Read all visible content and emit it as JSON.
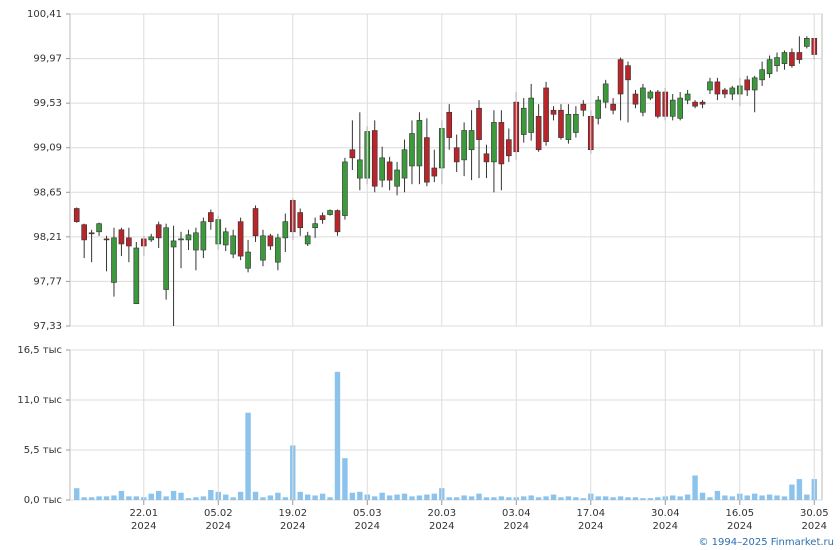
{
  "chart_data": [
    {
      "type": "candlestick",
      "up_color": "#3c9a3c",
      "down_color": "#b8262b",
      "grid": true,
      "ylim": [
        97.33,
        100.41
      ],
      "yticks": [
        {
          "value": 97.33,
          "label": "97,33"
        },
        {
          "value": 97.77,
          "label": "97,77"
        },
        {
          "value": 98.21,
          "label": "98,21"
        },
        {
          "value": 98.65,
          "label": "98,65"
        },
        {
          "value": 99.09,
          "label": "99,09"
        },
        {
          "value": 99.53,
          "label": "99,53"
        },
        {
          "value": 99.97,
          "label": "99,97"
        },
        {
          "value": 100.41,
          "label": "100,41"
        }
      ],
      "open": [
        98.49,
        98.33,
        98.25,
        98.26,
        98.19,
        97.76,
        98.28,
        98.2,
        97.55,
        98.19,
        98.18,
        98.33,
        97.69,
        98.11,
        98.18,
        98.18,
        98.08,
        98.08,
        98.45,
        98.14,
        98.13,
        98.04,
        98.36,
        97.9,
        98.49,
        97.98,
        98.22,
        97.96,
        98.2,
        98.57,
        98.45,
        98.14,
        98.3,
        98.42,
        98.43,
        98.47,
        98.42,
        99.07,
        98.79,
        98.79,
        99.26,
        98.77,
        98.95,
        98.71,
        98.79,
        98.91,
        98.91,
        99.19,
        98.89,
        98.89,
        99.44,
        99.09,
        98.97,
        99.07,
        99.48,
        99.03,
        98.95,
        99.34,
        99.17,
        99.54,
        99.22,
        99.24,
        99.4,
        99.68,
        99.46,
        99.46,
        99.17,
        99.24,
        99.52,
        99.4,
        99.38,
        99.54,
        99.52,
        99.96,
        99.9,
        99.62,
        99.44,
        99.58,
        99.64,
        99.64,
        99.4,
        99.38,
        99.56,
        99.54,
        99.54,
        99.66,
        99.74,
        99.66,
        99.62,
        99.62,
        99.76,
        99.66,
        99.76,
        99.82,
        99.9,
        99.92,
        100.03,
        100.03,
        100.09,
        100.17
      ],
      "high": [
        98.5,
        98.34,
        98.28,
        98.35,
        98.22,
        98.3,
        98.3,
        98.3,
        98.16,
        98.22,
        98.24,
        98.36,
        98.34,
        98.32,
        98.26,
        98.28,
        98.3,
        98.4,
        98.48,
        98.42,
        98.3,
        98.28,
        98.4,
        98.18,
        98.52,
        98.28,
        98.24,
        98.24,
        98.44,
        98.59,
        98.49,
        98.26,
        98.4,
        98.45,
        98.48,
        98.48,
        98.99,
        99.36,
        99.44,
        99.3,
        99.36,
        99.1,
        99.0,
        98.95,
        99.17,
        99.36,
        99.44,
        99.38,
        99.07,
        99.36,
        99.52,
        99.22,
        99.34,
        99.46,
        99.56,
        99.12,
        99.46,
        99.46,
        99.28,
        99.64,
        99.58,
        99.72,
        99.52,
        99.74,
        99.5,
        99.52,
        99.52,
        99.5,
        99.56,
        99.46,
        99.6,
        99.76,
        99.58,
        99.98,
        99.94,
        99.66,
        99.72,
        99.66,
        99.66,
        99.68,
        99.62,
        99.64,
        99.66,
        99.56,
        99.56,
        99.78,
        99.78,
        99.68,
        99.7,
        99.78,
        99.8,
        99.8,
        99.94,
        100.0,
        100.03,
        100.05,
        100.07,
        100.19,
        100.19,
        100.17
      ],
      "low": [
        98.35,
        98.0,
        97.96,
        98.22,
        97.87,
        97.62,
        98.02,
        97.96,
        97.55,
        98.02,
        98.16,
        98.1,
        97.59,
        97.33,
        97.9,
        98.08,
        97.88,
        98.0,
        98.28,
        98.08,
        98.07,
        98.0,
        97.98,
        97.86,
        98.16,
        97.92,
        98.08,
        97.88,
        98.06,
        98.18,
        98.22,
        98.12,
        98.2,
        98.34,
        98.42,
        98.22,
        98.38,
        98.87,
        98.67,
        98.73,
        98.65,
        98.7,
        98.67,
        98.62,
        98.65,
        98.73,
        98.73,
        98.71,
        98.75,
        98.73,
        99.07,
        98.85,
        98.81,
        98.77,
        98.79,
        98.79,
        98.65,
        98.67,
        98.95,
        98.97,
        99.14,
        99.16,
        99.05,
        99.11,
        99.36,
        99.17,
        99.13,
        99.19,
        99.4,
        99.03,
        99.32,
        99.48,
        99.42,
        99.36,
        99.34,
        99.48,
        99.4,
        99.56,
        99.38,
        99.36,
        99.36,
        99.36,
        99.52,
        99.48,
        99.48,
        99.62,
        99.56,
        99.58,
        99.56,
        99.5,
        99.6,
        99.44,
        99.7,
        99.78,
        99.84,
        99.86,
        99.88,
        99.92,
        100.07,
        99.96
      ],
      "close": [
        98.36,
        98.18,
        98.24,
        98.34,
        98.18,
        98.2,
        98.14,
        98.12,
        98.1,
        98.12,
        98.21,
        98.2,
        98.3,
        98.17,
        98.19,
        98.23,
        98.25,
        98.36,
        98.36,
        98.38,
        98.26,
        98.22,
        98.02,
        98.06,
        98.22,
        98.22,
        98.12,
        98.2,
        98.36,
        98.26,
        98.3,
        98.22,
        98.34,
        98.38,
        98.47,
        98.26,
        98.95,
        98.99,
        98.97,
        99.25,
        98.71,
        98.99,
        98.77,
        98.87,
        99.07,
        99.23,
        99.36,
        98.75,
        98.81,
        99.28,
        99.19,
        98.95,
        99.26,
        99.26,
        99.17,
        98.95,
        99.34,
        98.93,
        99.01,
        99.05,
        99.48,
        99.58,
        99.07,
        99.15,
        99.42,
        99.19,
        99.42,
        99.42,
        99.46,
        99.07,
        99.56,
        99.72,
        99.46,
        99.62,
        99.76,
        99.52,
        99.68,
        99.64,
        99.4,
        99.4,
        99.56,
        99.58,
        99.62,
        99.5,
        99.52,
        99.74,
        99.62,
        99.62,
        99.68,
        99.7,
        99.66,
        99.78,
        99.86,
        99.96,
        99.98,
        100.03,
        99.9,
        99.96,
        100.17,
        100.01
      ]
    },
    {
      "type": "bar",
      "color": "#8cc3ec",
      "grid": true,
      "ylim": [
        0,
        16.5
      ],
      "yticks": [
        {
          "value": 0,
          "label": "0,0 тыс"
        },
        {
          "value": 5.5,
          "label": "5,5 тыс"
        },
        {
          "value": 11,
          "label": "11,0 тыс"
        },
        {
          "value": 16.5,
          "label": "16,5 тыс"
        }
      ],
      "categories": [
        null,
        null,
        null,
        null,
        null,
        null,
        null,
        null,
        null,
        [
          "22.01",
          "2024"
        ],
        null,
        null,
        null,
        null,
        null,
        null,
        null,
        null,
        null,
        [
          "05.02",
          "2024"
        ],
        null,
        null,
        null,
        null,
        null,
        null,
        null,
        null,
        null,
        [
          "19.02",
          "2024"
        ],
        null,
        null,
        null,
        null,
        null,
        null,
        null,
        null,
        null,
        [
          "05.03",
          "2024"
        ],
        null,
        null,
        null,
        null,
        null,
        null,
        null,
        null,
        null,
        [
          "20.03",
          "2024"
        ],
        null,
        null,
        null,
        null,
        null,
        null,
        null,
        null,
        null,
        [
          "03.04",
          "2024"
        ],
        null,
        null,
        null,
        null,
        null,
        null,
        null,
        null,
        null,
        [
          "17.04",
          "2024"
        ],
        null,
        null,
        null,
        null,
        null,
        null,
        null,
        null,
        null,
        [
          "30.04",
          "2024"
        ],
        null,
        null,
        null,
        null,
        null,
        null,
        null,
        null,
        null,
        [
          "16.05",
          "2024"
        ],
        null,
        null,
        null,
        null,
        null,
        null,
        null,
        null,
        null,
        [
          "30.05",
          "2024"
        ]
      ],
      "values": [
        1.3,
        0.3,
        0.3,
        0.4,
        0.4,
        0.5,
        1.0,
        0.4,
        0.4,
        0.3,
        0.7,
        1.0,
        0.4,
        1.0,
        0.8,
        0.2,
        0.3,
        0.4,
        1.1,
        0.9,
        0.6,
        0.3,
        0.9,
        9.6,
        0.9,
        0.3,
        0.5,
        0.8,
        0.3,
        6.0,
        0.9,
        0.6,
        0.5,
        0.7,
        0.3,
        14.1,
        4.6,
        0.8,
        0.9,
        0.6,
        0.4,
        0.8,
        0.5,
        0.6,
        0.7,
        0.4,
        0.5,
        0.6,
        0.7,
        1.3,
        0.3,
        0.3,
        0.5,
        0.4,
        0.7,
        0.3,
        0.3,
        0.4,
        0.3,
        0.3,
        0.4,
        0.5,
        0.3,
        0.4,
        0.6,
        0.3,
        0.4,
        0.3,
        0.2,
        0.7,
        0.4,
        0.4,
        0.3,
        0.4,
        0.3,
        0.3,
        0.2,
        0.2,
        0.3,
        0.4,
        0.5,
        0.4,
        0.6,
        2.7,
        0.8,
        0.3,
        1.0,
        0.5,
        0.4,
        0.7,
        0.5,
        0.7,
        0.5,
        0.6,
        0.5,
        0.4,
        1.7,
        2.3,
        0.6,
        2.3
      ]
    }
  ],
  "footer": "© 1994–2025 Finmarket.ru"
}
